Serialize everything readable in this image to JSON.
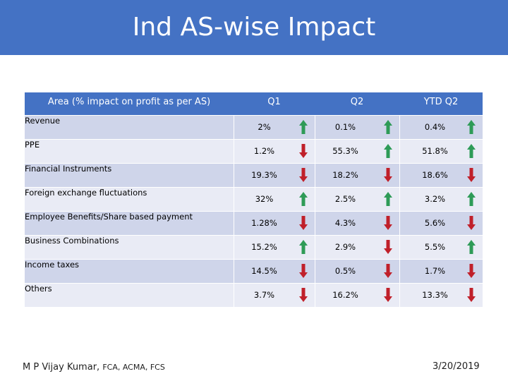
{
  "title": "Ind AS-wise Impact",
  "table": {
    "headers": [
      "Area (% impact on profit as per AS)",
      "Q1",
      "Q2",
      "YTD Q2"
    ],
    "rows": [
      {
        "area": "Revenue",
        "q1": {
          "value": "2%",
          "dir": "up"
        },
        "q2": {
          "value": "0.1%",
          "dir": "up"
        },
        "ytd": {
          "value": "0.4%",
          "dir": "up"
        }
      },
      {
        "area": "PPE",
        "q1": {
          "value": "1.2%",
          "dir": "down"
        },
        "q2": {
          "value": "55.3%",
          "dir": "up"
        },
        "ytd": {
          "value": "51.8%",
          "dir": "up"
        }
      },
      {
        "area": "Financial Instruments",
        "q1": {
          "value": "19.3%",
          "dir": "down"
        },
        "q2": {
          "value": "18.2%",
          "dir": "down"
        },
        "ytd": {
          "value": "18.6%",
          "dir": "down"
        }
      },
      {
        "area": "Foreign exchange fluctuations",
        "q1": {
          "value": "32%",
          "dir": "up"
        },
        "q2": {
          "value": "2.5%",
          "dir": "up"
        },
        "ytd": {
          "value": "3.2%",
          "dir": "up"
        }
      },
      {
        "area": "Employee Benefits/Share based payment",
        "q1": {
          "value": "1.28%",
          "dir": "down"
        },
        "q2": {
          "value": "4.3%",
          "dir": "down"
        },
        "ytd": {
          "value": "5.6%",
          "dir": "down"
        }
      },
      {
        "area": "Business Combinations",
        "q1": {
          "value": "15.2%",
          "dir": "up"
        },
        "q2": {
          "value": "2.9%",
          "dir": "down"
        },
        "ytd": {
          "value": "5.5%",
          "dir": "up"
        }
      },
      {
        "area": "Income taxes",
        "q1": {
          "value": "14.5%",
          "dir": "down"
        },
        "q2": {
          "value": "0.5%",
          "dir": "down"
        },
        "ytd": {
          "value": "1.7%",
          "dir": "down"
        }
      },
      {
        "area": "Others",
        "q1": {
          "value": "3.7%",
          "dir": "down"
        },
        "q2": {
          "value": "16.2%",
          "dir": "down"
        },
        "ytd": {
          "value": "13.3%",
          "dir": "down"
        }
      }
    ]
  },
  "colors": {
    "up": "#2e9b57",
    "down": "#c0202a",
    "header": "#4472c4"
  },
  "footer": {
    "author": "M P Vijay Kumar, ",
    "credentials": "FCA, ACMA, FCS",
    "date": "3/20/2019"
  }
}
